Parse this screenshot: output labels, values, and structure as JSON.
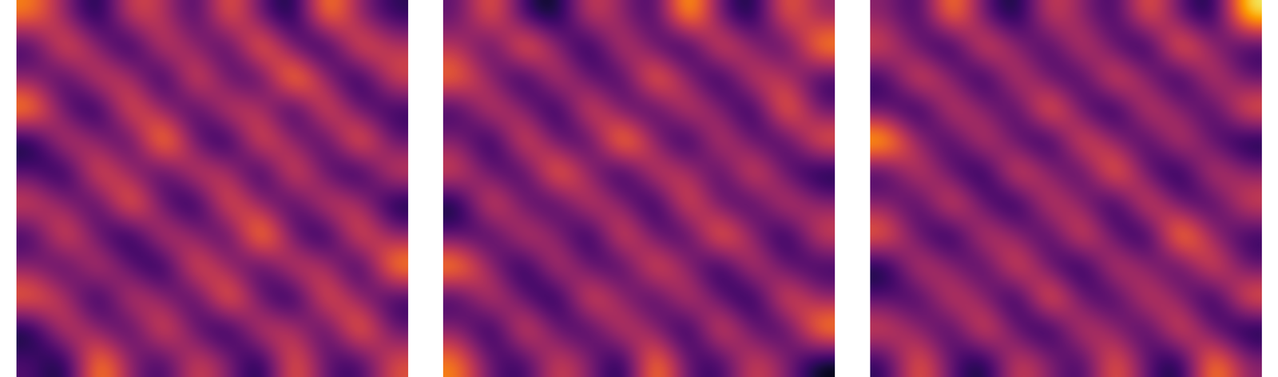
{
  "chart_data": [
    {
      "type": "heatmap",
      "color": "inferno",
      "tick_labels": false,
      "cells": [
        [
          7,
          4,
          1,
          6,
          5,
          2,
          7,
          3,
          1,
          8,
          4,
          2
        ],
        [
          2,
          7,
          4,
          1,
          6,
          4,
          2,
          8,
          3,
          1,
          7,
          5
        ],
        [
          4,
          2,
          6,
          5,
          1,
          7,
          3,
          2,
          9,
          4,
          1,
          6
        ],
        [
          8,
          3,
          1,
          7,
          4,
          2,
          6,
          5,
          1,
          7,
          3,
          2
        ],
        [
          1,
          6,
          4,
          2,
          9,
          3,
          1,
          7,
          4,
          2,
          8,
          3
        ],
        [
          3,
          1,
          7,
          4,
          2,
          6,
          5,
          1,
          7,
          3,
          1,
          6
        ],
        [
          6,
          4,
          2,
          8,
          3,
          1,
          7,
          4,
          2,
          6,
          5,
          1
        ],
        [
          2,
          7,
          3,
          1,
          6,
          4,
          2,
          9,
          3,
          1,
          7,
          4
        ],
        [
          4,
          2,
          6,
          3,
          1,
          7,
          4,
          2,
          6,
          5,
          1,
          8
        ],
        [
          7,
          5,
          1,
          6,
          4,
          2,
          8,
          3,
          1,
          7,
          4,
          2
        ],
        [
          1,
          6,
          4,
          2,
          7,
          3,
          1,
          6,
          5,
          2,
          8,
          3
        ],
        [
          3,
          1,
          8,
          4,
          2,
          6,
          4,
          1,
          7,
          3,
          2,
          6
        ]
      ]
    },
    {
      "type": "heatmap",
      "color": "inferno",
      "tick_labels": false,
      "cells": [
        [
          3,
          7,
          2,
          1,
          6,
          4,
          2,
          9,
          3,
          1,
          7,
          4
        ],
        [
          5,
          2,
          8,
          4,
          1,
          6,
          3,
          1,
          7,
          4,
          2,
          8
        ],
        [
          7,
          4,
          1,
          6,
          3,
          2,
          8,
          4,
          1,
          6,
          5,
          2
        ],
        [
          2,
          6,
          4,
          1,
          7,
          3,
          2,
          6,
          4,
          1,
          8,
          3
        ],
        [
          4,
          1,
          7,
          3,
          2,
          9,
          4,
          1,
          6,
          3,
          2,
          7
        ],
        [
          6,
          3,
          2,
          8,
          4,
          1,
          6,
          5,
          2,
          7,
          3,
          1
        ],
        [
          1,
          7,
          3,
          2,
          6,
          4,
          1,
          7,
          3,
          2,
          6,
          4
        ],
        [
          3,
          2,
          6,
          4,
          1,
          7,
          3,
          2,
          8,
          4,
          1,
          6
        ],
        [
          8,
          4,
          1,
          6,
          3,
          2,
          7,
          4,
          1,
          6,
          3,
          2
        ],
        [
          2,
          6,
          3,
          1,
          7,
          4,
          2,
          6,
          3,
          1,
          7,
          4
        ],
        [
          4,
          1,
          7,
          3,
          2,
          6,
          4,
          1,
          7,
          3,
          2,
          8
        ],
        [
          7,
          3,
          2,
          6,
          4,
          1,
          8,
          3,
          2,
          6,
          4,
          1
        ]
      ]
    },
    {
      "type": "heatmap",
      "color": "inferno",
      "tick_labels": false,
      "cells": [
        [
          4,
          2,
          8,
          3,
          1,
          6,
          4,
          2,
          7,
          3,
          1,
          9
        ],
        [
          6,
          3,
          1,
          7,
          4,
          2,
          6,
          3,
          1,
          8,
          4,
          2
        ],
        [
          2,
          7,
          4,
          1,
          6,
          3,
          2,
          7,
          4,
          1,
          6,
          3
        ],
        [
          3,
          1,
          6,
          4,
          2,
          8,
          3,
          1,
          6,
          4,
          2,
          7
        ],
        [
          9,
          4,
          2,
          6,
          3,
          1,
          7,
          4,
          2,
          6,
          3,
          1
        ],
        [
          2,
          6,
          3,
          1,
          7,
          4,
          2,
          8,
          3,
          1,
          6,
          4
        ],
        [
          4,
          2,
          7,
          3,
          1,
          6,
          4,
          1,
          7,
          3,
          2,
          6
        ],
        [
          7,
          3,
          1,
          6,
          4,
          2,
          7,
          3,
          1,
          9,
          4,
          2
        ],
        [
          1,
          6,
          4,
          2,
          7,
          3,
          1,
          6,
          4,
          2,
          7,
          3
        ],
        [
          3,
          2,
          6,
          4,
          1,
          8,
          3,
          2,
          6,
          4,
          1,
          7
        ],
        [
          6,
          4,
          2,
          7,
          3,
          1,
          6,
          4,
          2,
          7,
          3,
          1
        ],
        [
          2,
          7,
          3,
          1,
          6,
          4,
          2,
          7,
          3,
          1,
          8,
          4
        ]
      ]
    }
  ]
}
